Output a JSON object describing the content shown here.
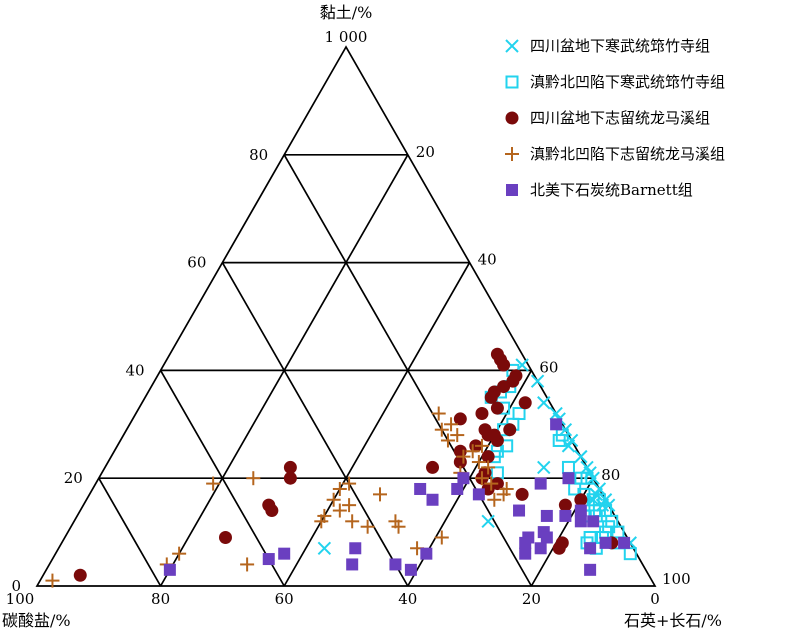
{
  "chart_data": {
    "type": "scatter",
    "subtype": "ternary",
    "axes": {
      "top": {
        "label": "黏土/%",
        "apex_label": "1 000"
      },
      "left": {
        "label": "碳酸盐/%"
      },
      "right": {
        "label": "石英+长石/%"
      }
    },
    "tick_labels": {
      "left_edge": [
        "80",
        "60",
        "40",
        "20",
        "0"
      ],
      "right_edge": [
        "20",
        "40",
        "60",
        "80"
      ],
      "bottom": [
        "100",
        "80",
        "60",
        "40",
        "20",
        "0",
        "100"
      ]
    },
    "grid": true,
    "legend_position": "top-right",
    "series": [
      {
        "name": "四川盆地下寒武统筇竹寺组",
        "marker": "x",
        "color": "#22d3ee",
        "points": [
          {
            "clay": 41,
            "carbonate": 1
          },
          {
            "clay": 38,
            "carbonate": 0
          },
          {
            "clay": 34,
            "carbonate": 1
          },
          {
            "clay": 32,
            "carbonate": 0
          },
          {
            "clay": 31,
            "carbonate": 0
          },
          {
            "clay": 29,
            "carbonate": 0
          },
          {
            "clay": 27,
            "carbonate": 0
          },
          {
            "clay": 26,
            "carbonate": 1
          },
          {
            "clay": 24,
            "carbonate": 0
          },
          {
            "clay": 22,
            "carbonate": 0
          },
          {
            "clay": 21,
            "carbonate": 0
          },
          {
            "clay": 20,
            "carbonate": 0
          },
          {
            "clay": 18,
            "carbonate": 0
          },
          {
            "clay": 17,
            "carbonate": 1
          },
          {
            "clay": 16,
            "carbonate": 2
          },
          {
            "clay": 16,
            "carbonate": 0
          },
          {
            "clay": 15,
            "carbonate": 0
          },
          {
            "clay": 15,
            "carbonate": 1
          },
          {
            "clay": 8,
            "carbonate": 0
          },
          {
            "clay": 22,
            "carbonate": 7
          },
          {
            "clay": 12,
            "carbonate": 21
          },
          {
            "clay": 7,
            "carbonate": 50
          }
        ]
      },
      {
        "name": "滇黔北凹陷下寒武统筇竹寺组",
        "marker": "square-open",
        "color": "#22d3ee",
        "points": [
          {
            "clay": 40,
            "carbonate": 3
          },
          {
            "clay": 37,
            "carbonate": 5
          },
          {
            "clay": 36,
            "carbonate": 7
          },
          {
            "clay": 35,
            "carbonate": 9
          },
          {
            "clay": 33,
            "carbonate": 8
          },
          {
            "clay": 32,
            "carbonate": 6
          },
          {
            "clay": 30,
            "carbonate": 8
          },
          {
            "clay": 29,
            "carbonate": 10
          },
          {
            "clay": 28,
            "carbonate": 1
          },
          {
            "clay": 27,
            "carbonate": 2
          },
          {
            "clay": 26,
            "carbonate": 11
          },
          {
            "clay": 25,
            "carbonate": 13
          },
          {
            "clay": 24,
            "carbonate": 14
          },
          {
            "clay": 22,
            "carbonate": 3
          },
          {
            "clay": 21,
            "carbonate": 15
          },
          {
            "clay": 20,
            "carbonate": 2
          },
          {
            "clay": 20,
            "carbonate": 1
          },
          {
            "clay": 18,
            "carbonate": 4
          },
          {
            "clay": 17,
            "carbonate": 3
          },
          {
            "clay": 16,
            "carbonate": 1
          },
          {
            "clay": 16,
            "carbonate": 2
          },
          {
            "clay": 15,
            "carbonate": 4
          },
          {
            "clay": 14,
            "carbonate": 1
          },
          {
            "clay": 14,
            "carbonate": 2
          },
          {
            "clay": 13,
            "carbonate": 5
          },
          {
            "clay": 13,
            "carbonate": 3
          },
          {
            "clay": 12,
            "carbonate": 1
          },
          {
            "clay": 11,
            "carbonate": 2
          },
          {
            "clay": 10,
            "carbonate": 1
          },
          {
            "clay": 10,
            "carbonate": 3
          },
          {
            "clay": 9,
            "carbonate": 4
          },
          {
            "clay": 9,
            "carbonate": 6
          },
          {
            "clay": 8,
            "carbonate": 7
          },
          {
            "clay": 8,
            "carbonate": 2
          },
          {
            "clay": 7,
            "carbonate": 6
          },
          {
            "clay": 6,
            "carbonate": 1
          }
        ]
      },
      {
        "name": "四川盆地下志留统龙马溪组",
        "marker": "circle",
        "color": "#7a0a0a",
        "points": [
          {
            "clay": 43,
            "carbonate": 4
          },
          {
            "clay": 42,
            "carbonate": 4
          },
          {
            "clay": 41,
            "carbonate": 4
          },
          {
            "clay": 39,
            "carbonate": 3
          },
          {
            "clay": 38,
            "carbonate": 4
          },
          {
            "clay": 37,
            "carbonate": 6
          },
          {
            "clay": 36,
            "carbonate": 8
          },
          {
            "clay": 35,
            "carbonate": 9
          },
          {
            "clay": 34,
            "carbonate": 4
          },
          {
            "clay": 33,
            "carbonate": 9
          },
          {
            "clay": 32,
            "carbonate": 12
          },
          {
            "clay": 31,
            "carbonate": 16
          },
          {
            "clay": 29,
            "carbonate": 9
          },
          {
            "clay": 28,
            "carbonate": 13
          },
          {
            "clay": 27,
            "carbonate": 12
          },
          {
            "clay": 26,
            "carbonate": 16
          },
          {
            "clay": 25,
            "carbonate": 19
          },
          {
            "clay": 24,
            "carbonate": 15
          },
          {
            "clay": 23,
            "carbonate": 20
          },
          {
            "clay": 22,
            "carbonate": 25
          },
          {
            "clay": 21,
            "carbonate": 17
          },
          {
            "clay": 20,
            "carbonate": 18
          },
          {
            "clay": 19,
            "carbonate": 16
          },
          {
            "clay": 18,
            "carbonate": 18
          },
          {
            "clay": 17,
            "carbonate": 13
          },
          {
            "clay": 16,
            "carbonate": 4
          },
          {
            "clay": 15,
            "carbonate": 7
          },
          {
            "clay": 29,
            "carbonate": 13
          },
          {
            "clay": 28,
            "carbonate": 12
          },
          {
            "clay": 22,
            "carbonate": 48
          },
          {
            "clay": 20,
            "carbonate": 49
          },
          {
            "clay": 15,
            "carbonate": 55
          },
          {
            "clay": 14,
            "carbonate": 55
          },
          {
            "clay": 9,
            "carbonate": 65
          },
          {
            "clay": 8,
            "carbonate": 11
          },
          {
            "clay": 7,
            "carbonate": 12
          },
          {
            "clay": 8,
            "carbonate": 3
          },
          {
            "clay": 2,
            "carbonate": 92
          }
        ]
      },
      {
        "name": "滇黔北凹陷下志留统龙马溪组",
        "marker": "plus",
        "color": "#b5651d",
        "points": [
          {
            "clay": 32,
            "carbonate": 19
          },
          {
            "clay": 30,
            "carbonate": 18
          },
          {
            "clay": 29,
            "carbonate": 20
          },
          {
            "clay": 28,
            "carbonate": 18
          },
          {
            "clay": 27,
            "carbonate": 20
          },
          {
            "clay": 26,
            "carbonate": 15
          },
          {
            "clay": 25,
            "carbonate": 17
          },
          {
            "clay": 24,
            "carbonate": 19
          },
          {
            "clay": 23,
            "carbonate": 17
          },
          {
            "clay": 22,
            "carbonate": 16
          },
          {
            "clay": 21,
            "carbonate": 21
          },
          {
            "clay": 20,
            "carbonate": 18
          },
          {
            "clay": 19,
            "carbonate": 17
          },
          {
            "clay": 18,
            "carbonate": 15
          },
          {
            "clay": 17,
            "carbonate": 16
          },
          {
            "clay": 16,
            "carbonate": 18
          },
          {
            "clay": 19,
            "carbonate": 40
          },
          {
            "clay": 18,
            "carbonate": 42
          },
          {
            "clay": 17,
            "carbonate": 36
          },
          {
            "clay": 16,
            "carbonate": 44
          },
          {
            "clay": 15,
            "carbonate": 42
          },
          {
            "clay": 14,
            "carbonate": 44
          },
          {
            "clay": 13,
            "carbonate": 47
          },
          {
            "clay": 12,
            "carbonate": 43
          },
          {
            "clay": 11,
            "carbonate": 41
          },
          {
            "clay": 12,
            "carbonate": 48
          },
          {
            "clay": 11,
            "carbonate": 36
          },
          {
            "clay": 9,
            "carbonate": 30
          },
          {
            "clay": 20,
            "carbonate": 55
          },
          {
            "clay": 19,
            "carbonate": 62
          },
          {
            "clay": 12,
            "carbonate": 36
          },
          {
            "clay": 7,
            "carbonate": 35
          },
          {
            "clay": 6,
            "carbonate": 74
          },
          {
            "clay": 4,
            "carbonate": 77
          },
          {
            "clay": 4,
            "carbonate": 64
          },
          {
            "clay": 1,
            "carbonate": 97
          }
        ]
      },
      {
        "name": "北美下石炭统Barnett组",
        "marker": "square",
        "color": "#6a3fc0",
        "points": [
          {
            "clay": 30,
            "carbonate": 1
          },
          {
            "clay": 20,
            "carbonate": 4
          },
          {
            "clay": 20,
            "carbonate": 21
          },
          {
            "clay": 18,
            "carbonate": 23
          },
          {
            "clay": 18,
            "carbonate": 29
          },
          {
            "clay": 17,
            "carbonate": 20
          },
          {
            "clay": 16,
            "carbonate": 28
          },
          {
            "clay": 14,
            "carbonate": 15
          },
          {
            "clay": 14,
            "carbonate": 5
          },
          {
            "clay": 13,
            "carbonate": 8
          },
          {
            "clay": 13,
            "carbonate": 11
          },
          {
            "clay": 12,
            "carbonate": 4
          },
          {
            "clay": 12,
            "carbonate": 6
          },
          {
            "clay": 10,
            "carbonate": 13
          },
          {
            "clay": 9,
            "carbonate": 13
          },
          {
            "clay": 9,
            "carbonate": 16
          },
          {
            "clay": 8,
            "carbonate": 1
          },
          {
            "clay": 8,
            "carbonate": 4
          },
          {
            "clay": 8,
            "carbonate": 17
          },
          {
            "clay": 7,
            "carbonate": 7
          },
          {
            "clay": 7,
            "carbonate": 15
          },
          {
            "clay": 7,
            "carbonate": 45
          },
          {
            "clay": 6,
            "carbonate": 34
          },
          {
            "clay": 6,
            "carbonate": 18
          },
          {
            "clay": 5,
            "carbonate": 60
          },
          {
            "clay": 4,
            "carbonate": 47
          },
          {
            "clay": 4,
            "carbonate": 40
          },
          {
            "clay": 3,
            "carbonate": 77
          },
          {
            "clay": 3,
            "carbonate": 38
          },
          {
            "clay": 3,
            "carbonate": 9
          },
          {
            "clay": 19,
            "carbonate": 9
          },
          {
            "clay": 6,
            "carbonate": 57
          }
        ]
      }
    ]
  }
}
